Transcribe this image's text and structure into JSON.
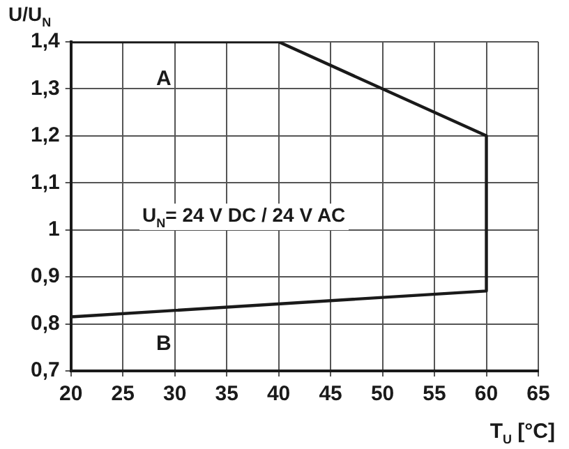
{
  "chart_data": {
    "type": "line",
    "xlabel": "T$_{U}$ [°C]",
    "ylabel": "U/U$_{N}$",
    "annotations": [
      "A",
      "B",
      "U$_{N}$= 24 V DC / 24 V AC"
    ],
    "x": [
      20,
      40,
      60,
      60,
      20
    ],
    "series": [
      {
        "color": "#1a1a1a",
        "values": [
          1.4,
          1.4,
          1.2,
          0.87,
          0.815
        ]
      }
    ],
    "xlim": [
      20,
      65
    ],
    "xticks": [
      20,
      25,
      30,
      35,
      40,
      45,
      50,
      55,
      60,
      65
    ],
    "ylim": [
      0.7,
      1.4
    ],
    "yticks": [
      {
        "value": 0.7,
        "label": "0,7"
      },
      {
        "value": 0.8,
        "label": "0,8"
      },
      {
        "value": 0.9,
        "label": "0,9"
      },
      1,
      {
        "value": 1.1,
        "label": "1,1"
      },
      {
        "value": 1.2,
        "label": "1,2"
      },
      {
        "value": 1.3,
        "label": "1,3"
      },
      {
        "value": 1.4,
        "label": "1,4"
      }
    ],
    "grid": true,
    "legend": false,
    "marker": "none",
    "line_style": "solid"
  }
}
